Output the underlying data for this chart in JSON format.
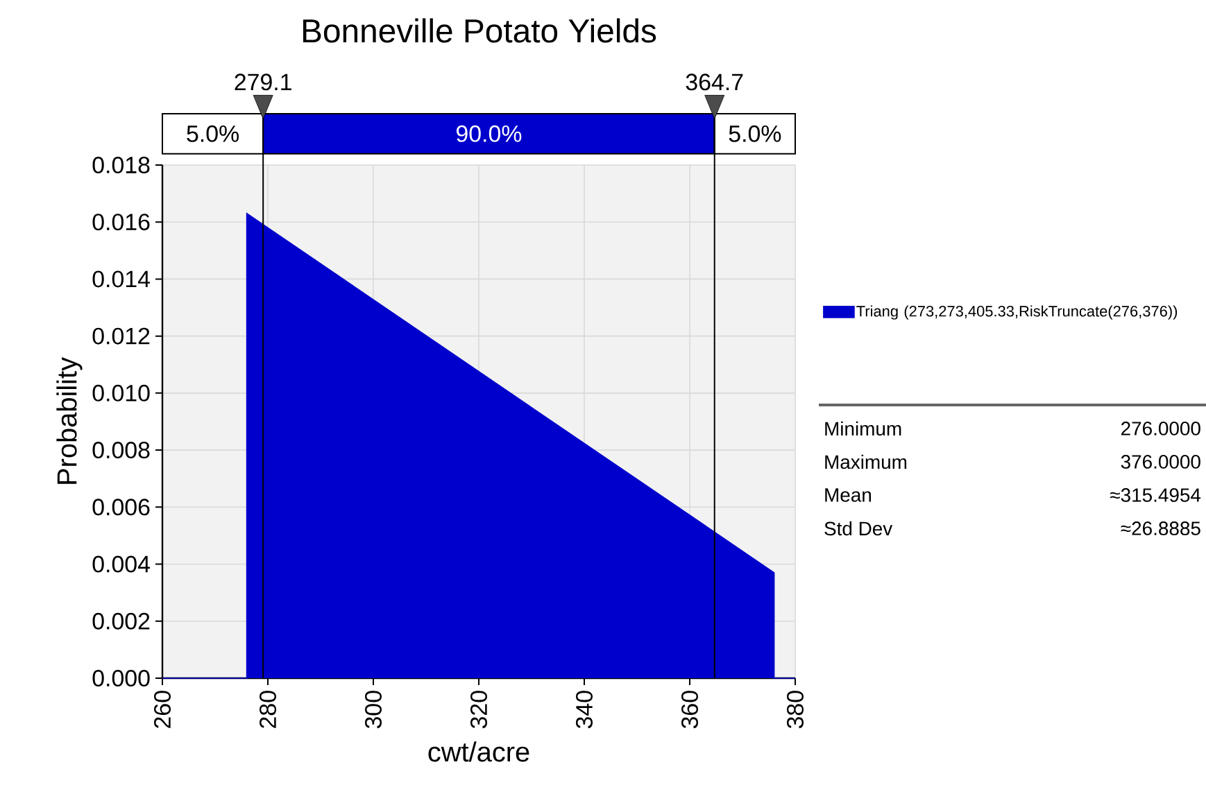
{
  "chart_data": {
    "type": "area",
    "title": "Bonneville Potato Yields",
    "xlabel": "cwt/acre",
    "ylabel": "Probability",
    "series": [
      {
        "name": "Triang (273,273,405.33,RiskTruncate(276,376))",
        "color": "#0000cc",
        "x": [
          260,
          276,
          276,
          376,
          376,
          380
        ],
        "values": [
          0,
          0,
          0.0163,
          0.0037,
          0,
          0
        ]
      }
    ],
    "xlim": [
      260,
      380
    ],
    "ylim": [
      0,
      0.018
    ],
    "xticks": [
      260,
      280,
      300,
      320,
      340,
      360,
      380
    ],
    "yticks": [
      {
        "value": 0,
        "label": "0.000"
      },
      {
        "value": 0.002,
        "label": "0.002"
      },
      {
        "value": 0.004,
        "label": "0.004"
      },
      {
        "value": 0.006,
        "label": "0.006"
      },
      {
        "value": 0.008,
        "label": "0.008"
      },
      {
        "value": 0.01,
        "label": "0.010"
      },
      {
        "value": 0.012,
        "label": "0.012"
      },
      {
        "value": 0.014,
        "label": "0.014"
      },
      {
        "value": 0.016,
        "label": "0.016"
      },
      {
        "value": 0.018,
        "label": "0.018"
      }
    ],
    "ref_lines": [
      {
        "axis": "x",
        "value": 279.1,
        "label": "279.1",
        "color": "#000000"
      },
      {
        "axis": "x",
        "value": 364.7,
        "label": "364.7",
        "color": "#000000"
      }
    ],
    "annotations": [
      "5.0%",
      "90.0%",
      "5.0%",
      "Minimum",
      "276.0000",
      "Maximum",
      "376.0000",
      "Mean",
      "≈315.4954",
      "Std Dev",
      "≈26.8885"
    ],
    "grid": true,
    "legend": "right"
  }
}
